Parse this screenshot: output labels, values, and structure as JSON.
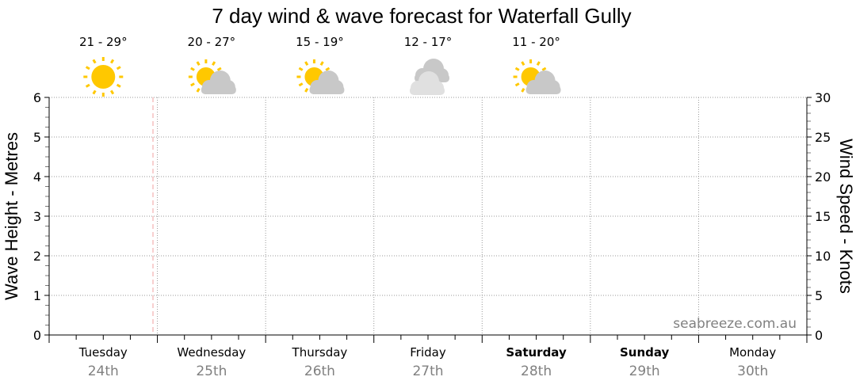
{
  "chart_data": {
    "type": "line",
    "title": "7 day wind & wave forecast for Waterfall Gully",
    "ylabel_left": "Wave Height - Metres",
    "ylabel_right": "Wind Speed - Knots",
    "ylim_left": [
      0,
      6
    ],
    "ylim_right": [
      0,
      30
    ],
    "yticks_left": [
      "0",
      "1",
      "2",
      "3",
      "4",
      "5",
      "6"
    ],
    "yticks_right": [
      "0",
      "5",
      "10",
      "15",
      "20",
      "25",
      "30"
    ],
    "grid": true,
    "days": [
      {
        "name": "Tuesday",
        "date": "24th",
        "bold": false
      },
      {
        "name": "Wednesday",
        "date": "25th",
        "bold": false
      },
      {
        "name": "Thursday",
        "date": "26th",
        "bold": false
      },
      {
        "name": "Friday",
        "date": "27th",
        "bold": false
      },
      {
        "name": "Saturday",
        "date": "28th",
        "bold": true
      },
      {
        "name": "Sunday",
        "date": "29th",
        "bold": true
      },
      {
        "name": "Monday",
        "date": "30th",
        "bold": false
      }
    ],
    "forecast": [
      {
        "temp": "21 - 29°",
        "icon": "sunny-icon"
      },
      {
        "temp": "20 - 27°",
        "icon": "partly-cloudy-icon"
      },
      {
        "temp": "15 - 19°",
        "icon": "partly-cloudy-icon"
      },
      {
        "temp": "12 - 17°",
        "icon": "cloudy-icon"
      },
      {
        "temp": "11 - 20°",
        "icon": "partly-cloudy-icon"
      }
    ],
    "series": [],
    "watermark": "seabreeze.com.au",
    "colors": {
      "sun": "#ffc800",
      "cloud": "#c8c8c8",
      "cloud_light": "#e0e0e0",
      "now_line": "#f0a0a0",
      "date_text": "#808080"
    }
  }
}
